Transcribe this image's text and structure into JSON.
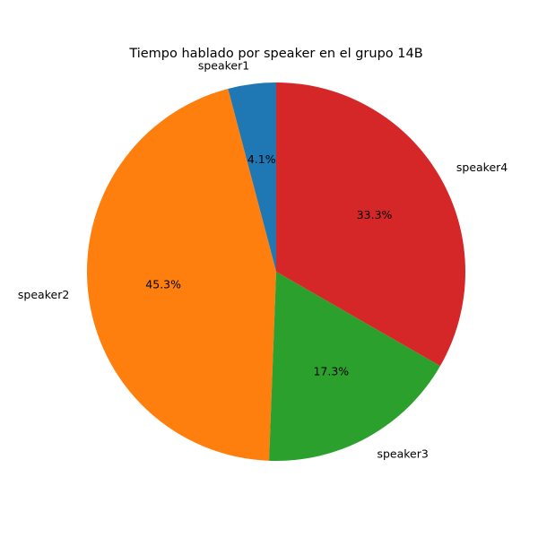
{
  "chart_data": {
    "type": "pie",
    "title": "Tiempo hablado por speaker en el grupo 14B",
    "categories": [
      "speaker1",
      "speaker2",
      "speaker3",
      "speaker4"
    ],
    "values": [
      4.1,
      45.3,
      17.3,
      33.3
    ],
    "value_labels": [
      "4.1%",
      "45.3%",
      "17.3%",
      "33.3%"
    ],
    "colors": [
      "#1f77b4",
      "#ff7f0e",
      "#2ca02c",
      "#d62728"
    ],
    "start_angle_deg": 90,
    "direction": "counterclockwise"
  }
}
